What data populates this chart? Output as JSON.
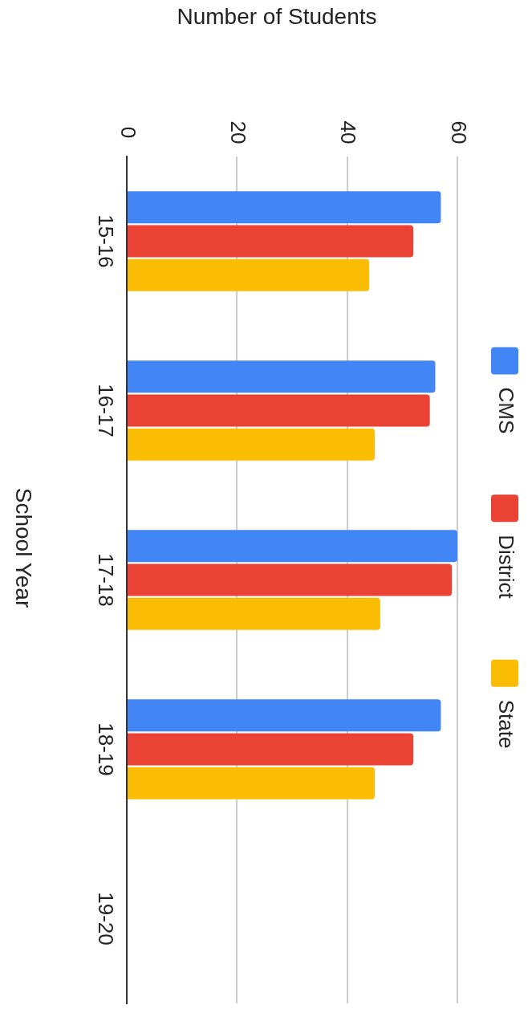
{
  "chart_data": {
    "type": "bar",
    "orientation": "horizontal",
    "xlabel": "Number of Students",
    "ylabel": "School Year",
    "categories": [
      "15-16",
      "16-17",
      "17-18",
      "18-19",
      "19-20"
    ],
    "series": [
      {
        "name": "CMS",
        "color": "#4285f4",
        "values": [
          57,
          56,
          60,
          57,
          null
        ]
      },
      {
        "name": "District",
        "color": "#ea4335",
        "values": [
          52,
          55,
          59,
          52,
          null
        ]
      },
      {
        "name": "State",
        "color": "#fbbc04",
        "values": [
          44,
          45,
          46,
          45,
          null
        ]
      }
    ],
    "xlim": [
      0,
      60
    ],
    "xticks": [
      0,
      20,
      40,
      60
    ],
    "grid": "x",
    "legend": "right"
  }
}
